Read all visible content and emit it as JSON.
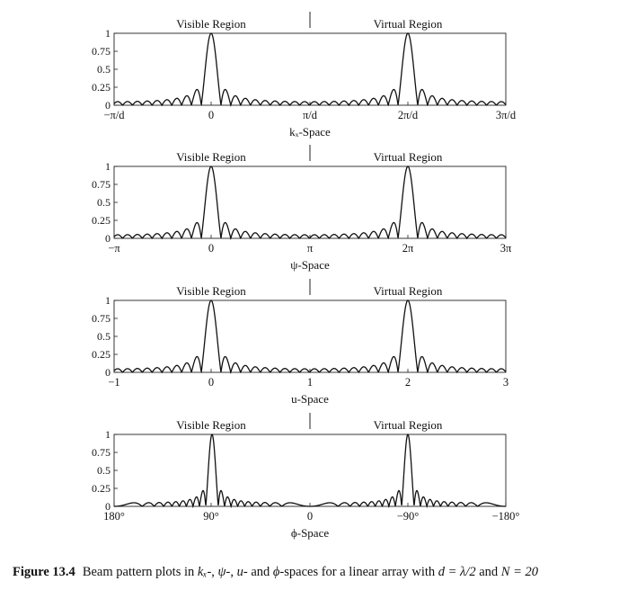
{
  "figure": {
    "caption_label": "Figure 13.4",
    "caption_prefix": "Beam pattern plots in ",
    "caption_math_kx": "kₓ",
    "caption_sep1": "-, ",
    "caption_math_psi": "ψ",
    "caption_sep2": "-, ",
    "caption_math_u": "u",
    "caption_sep3": "- and ",
    "caption_math_phi": "ϕ",
    "caption_mid": "-spaces for a linear array with ",
    "caption_math_d": "d = λ/2",
    "caption_and": " and ",
    "caption_math_n": "N = 20"
  },
  "chart_data": [
    {
      "type": "line",
      "title": "",
      "xlabel": "kₓ-Space",
      "ylabel": "",
      "ylim": [
        0,
        1
      ],
      "y_ticks": [
        "1",
        "0.75",
        "0.5",
        "0.25",
        "0"
      ],
      "x_ticks": [
        "−π/d",
        "0",
        "π/d",
        "2π/d",
        "3π/d"
      ],
      "region_labels": [
        "Visible Region",
        "Virtual Region"
      ],
      "series": [
        {
          "function": "normalized |sin(N·ψ/2)/(N·sin(ψ/2))|",
          "N": 20,
          "x_range": [
            "-π/d",
            "3π/d"
          ],
          "mainlobe_peaks_at": [
            "0",
            "2π/d"
          ]
        }
      ]
    },
    {
      "type": "line",
      "title": "",
      "xlabel": "ψ-Space",
      "ylabel": "",
      "ylim": [
        0,
        1
      ],
      "y_ticks": [
        "1",
        "0.75",
        "0.5",
        "0.25",
        "0"
      ],
      "x_ticks": [
        "−π",
        "0",
        "π",
        "2π",
        "3π"
      ],
      "region_labels": [
        "Visible Region",
        "Virtual Region"
      ],
      "series": [
        {
          "function": "normalized |sin(N·ψ/2)/(N·sin(ψ/2))|",
          "N": 20,
          "x_range": [
            "-π",
            "3π"
          ],
          "mainlobe_peaks_at": [
            "0",
            "2π"
          ]
        }
      ]
    },
    {
      "type": "line",
      "title": "",
      "xlabel": "u-Space",
      "ylabel": "",
      "ylim": [
        0,
        1
      ],
      "y_ticks": [
        "1",
        "0.75",
        "0.5",
        "0.25",
        "0"
      ],
      "x_ticks": [
        "−1",
        "0",
        "1",
        "2",
        "3"
      ],
      "region_labels": [
        "Visible Region",
        "Virtual Region"
      ],
      "series": [
        {
          "function": "normalized |sin(N·πu/2)/(N·sin(πu/2))|",
          "N": 20,
          "x_range": [
            -1,
            3
          ],
          "mainlobe_peaks_at": [
            0,
            2
          ]
        }
      ]
    },
    {
      "type": "line",
      "title": "",
      "xlabel": "ϕ-Space",
      "ylabel": "",
      "ylim": [
        0,
        1
      ],
      "y_ticks": [
        "1",
        "0.75",
        "0.5",
        "0.25",
        "0"
      ],
      "x_ticks": [
        "180°",
        "90°",
        "0",
        "−90°",
        "−180°"
      ],
      "region_labels": [
        "Visible Region",
        "Virtual Region"
      ],
      "series": [
        {
          "function": "normalized |sin(N·πcosϕ/2)/(N·sin(πcosϕ/2))|",
          "N": 20,
          "mainlobe_peaks_at": [
            "90°",
            "−90°"
          ]
        }
      ]
    }
  ]
}
